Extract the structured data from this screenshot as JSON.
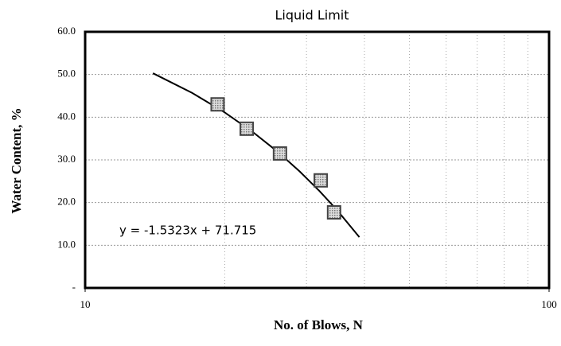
{
  "chart_data": {
    "type": "scatter",
    "title": "Liquid Limit",
    "x_label": "No. of Blows, N",
    "y_label": "Water Content, %",
    "annotation": "y = -1.5323x + 71.715",
    "xscale": "log",
    "xlim": [
      10,
      100
    ],
    "xticks": [
      10,
      100
    ],
    "xminor": [
      20,
      30,
      40,
      50,
      60,
      70,
      80,
      90
    ],
    "ylim": [
      0,
      60
    ],
    "yticks": [
      {
        "value": 0,
        "label": "-"
      },
      {
        "value": 10,
        "label": "10.0"
      },
      {
        "value": 20,
        "label": "20.0"
      },
      {
        "value": 30,
        "label": "30.0"
      },
      {
        "value": 40,
        "label": "40.0"
      },
      {
        "value": 50,
        "label": "50.0"
      },
      {
        "value": 60,
        "label": "60.0"
      }
    ],
    "grid": true,
    "color": "#444444",
    "x": [
      19.3,
      22.3,
      26.3,
      32.2,
      34.4
    ],
    "values": [
      43.0,
      37.3,
      31.5,
      25.2,
      17.7
    ],
    "trendline": {
      "x": [
        14,
        17,
        20,
        23,
        26,
        29,
        32,
        35,
        39
      ],
      "values": [
        50.3,
        45.7,
        41.1,
        36.5,
        31.9,
        27.3,
        22.7,
        18.1,
        11.9
      ]
    }
  }
}
